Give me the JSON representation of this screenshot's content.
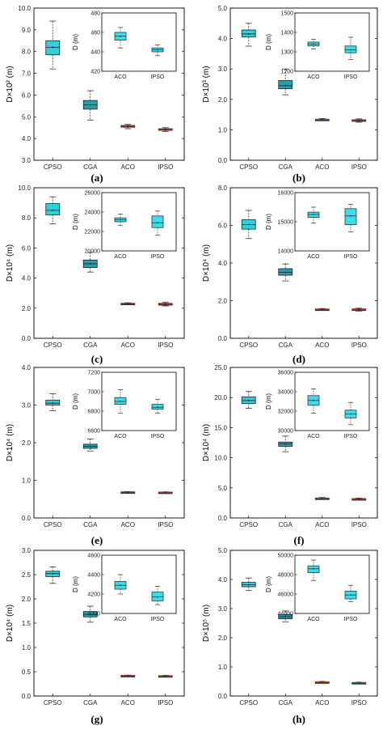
{
  "colors": {
    "CPSO": "#31cfd6",
    "CGA": "#2a9da8",
    "ACO": "#1e4f56",
    "IPSO": "#1e4f56",
    "median": "#b0341a",
    "inset_box": "#40dbe8"
  },
  "chart_data": [
    {
      "type": "box",
      "panel": "(a)",
      "ylabel": "D×10² (m)",
      "ylim": [
        3.0,
        10.0
      ],
      "yticks": [
        "3.0",
        "4.0",
        "5.0",
        "6.0",
        "7.0",
        "8.0",
        "9.0",
        "10.0"
      ],
      "categories": [
        "CPSO",
        "CGA",
        "ACO",
        "IPSO"
      ],
      "boxes": [
        {
          "min": 7.2,
          "q1": 7.85,
          "median": 8.2,
          "q3": 8.5,
          "max": 9.4
        },
        {
          "min": 4.85,
          "q1": 5.35,
          "median": 5.55,
          "q3": 5.75,
          "max": 6.2
        },
        {
          "min": 4.45,
          "q1": 4.52,
          "median": 4.56,
          "q3": 4.6,
          "max": 4.65
        },
        {
          "min": 4.32,
          "q1": 4.38,
          "median": 4.41,
          "q3": 4.45,
          "max": 4.5
        }
      ],
      "inset": {
        "ylabel": "D (m)",
        "ylim": [
          420,
          480
        ],
        "yticks": [
          "420",
          "440",
          "460",
          "480"
        ],
        "categories": [
          "ACO",
          "IPSO"
        ],
        "boxes": [
          {
            "min": 444,
            "q1": 452,
            "median": 456,
            "q3": 460,
            "max": 465
          },
          {
            "min": 436,
            "q1": 440,
            "median": 442,
            "q3": 444,
            "max": 447
          }
        ]
      }
    },
    {
      "type": "box",
      "panel": "(b)",
      "ylabel": "D×10³ (m)",
      "ylim": [
        0.0,
        5.0
      ],
      "yticks": [
        "0.0",
        "1.0",
        "2.0",
        "3.0",
        "4.0",
        "5.0"
      ],
      "categories": [
        "CPSO",
        "CGA",
        "ACO",
        "IPSO"
      ],
      "boxes": [
        {
          "min": 3.75,
          "q1": 4.05,
          "median": 4.15,
          "q3": 4.28,
          "max": 4.5
        },
        {
          "min": 2.15,
          "q1": 2.35,
          "median": 2.45,
          "q3": 2.62,
          "max": 3.0
        },
        {
          "min": 1.3,
          "q1": 1.32,
          "median": 1.34,
          "q3": 1.35,
          "max": 1.37
        },
        {
          "min": 1.25,
          "q1": 1.28,
          "median": 1.3,
          "q3": 1.33,
          "max": 1.36
        }
      ],
      "inset": {
        "ylabel": "D (m)",
        "ylim": [
          1200,
          1500
        ],
        "yticks": [
          "1200",
          "1300",
          "1400",
          "1500"
        ],
        "categories": [
          "ACO",
          "IPSO"
        ],
        "boxes": [
          {
            "min": 1315,
            "q1": 1330,
            "median": 1340,
            "q3": 1350,
            "max": 1365
          },
          {
            "min": 1260,
            "q1": 1295,
            "median": 1310,
            "q3": 1330,
            "max": 1375
          }
        ]
      }
    },
    {
      "type": "box",
      "panel": "(c)",
      "ylabel": "D×10⁴ (m)",
      "ylim": [
        0.0,
        10.0
      ],
      "yticks": [
        "0.0",
        "2.0",
        "4.0",
        "6.0",
        "8.0",
        "10.0"
      ],
      "categories": [
        "CPSO",
        "CGA",
        "ACO",
        "IPSO"
      ],
      "boxes": [
        {
          "min": 7.6,
          "q1": 8.2,
          "median": 8.5,
          "q3": 8.95,
          "max": 9.4
        },
        {
          "min": 4.4,
          "q1": 4.7,
          "median": 4.95,
          "q3": 5.2,
          "max": 5.7
        },
        {
          "min": 2.25,
          "q1": 2.28,
          "median": 2.3,
          "q3": 2.33,
          "max": 2.36
        },
        {
          "min": 2.15,
          "q1": 2.2,
          "median": 2.25,
          "q3": 2.32,
          "max": 2.4
        }
      ],
      "inset": {
        "ylabel": "D (m)",
        "ylim": [
          20000,
          26000
        ],
        "yticks": [
          "20000",
          "22000",
          "24000",
          "26000"
        ],
        "categories": [
          "ACO",
          "IPSO"
        ],
        "boxes": [
          {
            "min": 22600,
            "q1": 23000,
            "median": 23200,
            "q3": 23400,
            "max": 23800
          },
          {
            "min": 21600,
            "q1": 22400,
            "median": 22900,
            "q3": 23600,
            "max": 24100
          }
        ]
      }
    },
    {
      "type": "box",
      "panel": "(d)",
      "ylabel": "D×10⁴ (m)",
      "ylim": [
        0.0,
        8.0
      ],
      "yticks": [
        "0.0",
        "2.0",
        "4.0",
        "6.0",
        "8.0"
      ],
      "categories": [
        "CPSO",
        "CGA",
        "ACO",
        "IPSO"
      ],
      "boxes": [
        {
          "min": 5.3,
          "q1": 5.8,
          "median": 6.05,
          "q3": 6.3,
          "max": 6.8
        },
        {
          "min": 3.05,
          "q1": 3.35,
          "median": 3.5,
          "q3": 3.7,
          "max": 3.95
        },
        {
          "min": 1.5,
          "q1": 1.52,
          "median": 1.54,
          "q3": 1.56,
          "max": 1.58
        },
        {
          "min": 1.45,
          "q1": 1.48,
          "median": 1.52,
          "q3": 1.56,
          "max": 1.6
        }
      ],
      "inset": {
        "ylabel": "D (m)",
        "ylim": [
          14000,
          16000
        ],
        "yticks": [
          "14000",
          "15000",
          "16000"
        ],
        "categories": [
          "ACO",
          "IPSO"
        ],
        "boxes": [
          {
            "min": 14950,
            "q1": 15150,
            "median": 15250,
            "q3": 15330,
            "max": 15500
          },
          {
            "min": 14650,
            "q1": 14900,
            "median": 15200,
            "q3": 15450,
            "max": 15600
          }
        ]
      }
    },
    {
      "type": "box",
      "panel": "(e)",
      "ylabel": "D×10⁴ (m)",
      "ylim": [
        0.0,
        4.0
      ],
      "yticks": [
        "0.0",
        "1.0",
        "2.0",
        "3.0",
        "4.0"
      ],
      "categories": [
        "CPSO",
        "CGA",
        "ACO",
        "IPSO"
      ],
      "boxes": [
        {
          "min": 2.85,
          "q1": 3.0,
          "median": 3.05,
          "q3": 3.13,
          "max": 3.3
        },
        {
          "min": 1.78,
          "q1": 1.85,
          "median": 1.9,
          "q3": 1.96,
          "max": 2.1
        },
        {
          "min": 0.68,
          "q1": 0.685,
          "median": 0.69,
          "q3": 0.695,
          "max": 0.7
        },
        {
          "min": 0.675,
          "q1": 0.68,
          "median": 0.685,
          "q3": 0.69,
          "max": 0.695
        }
      ],
      "inset": {
        "ylabel": "D (m)",
        "ylim": [
          6600,
          7200
        ],
        "yticks": [
          "6600",
          "6800",
          "7000",
          "7200"
        ],
        "categories": [
          "ACO",
          "IPSO"
        ],
        "boxes": [
          {
            "min": 6780,
            "q1": 6870,
            "median": 6900,
            "q3": 6940,
            "max": 7020
          },
          {
            "min": 6780,
            "q1": 6820,
            "median": 6840,
            "q3": 6870,
            "max": 6920
          }
        ]
      }
    },
    {
      "type": "box",
      "panel": "(f)",
      "ylabel": "D×10⁴ (m)",
      "ylim": [
        0.0,
        25.0
      ],
      "yticks": [
        "0.0",
        "5.0",
        "10.0",
        "15.0",
        "20.0",
        "25.0"
      ],
      "categories": [
        "CPSO",
        "CGA",
        "ACO",
        "IPSO"
      ],
      "boxes": [
        {
          "min": 18.2,
          "q1": 19.0,
          "median": 19.5,
          "q3": 20.1,
          "max": 21.0
        },
        {
          "min": 11.0,
          "q1": 11.9,
          "median": 12.3,
          "q3": 12.6,
          "max": 13.6
        },
        {
          "min": 3.15,
          "q1": 3.22,
          "median": 3.28,
          "q3": 3.32,
          "max": 3.4
        },
        {
          "min": 3.0,
          "q1": 3.08,
          "median": 3.15,
          "q3": 3.22,
          "max": 3.3
        }
      ],
      "inset": {
        "ylabel": "D (m)",
        "ylim": [
          30000,
          36000
        ],
        "yticks": [
          "30000",
          "32000",
          "34000",
          "36000"
        ],
        "categories": [
          "ACO",
          "IPSO"
        ],
        "boxes": [
          {
            "min": 31800,
            "q1": 32600,
            "median": 33100,
            "q3": 33600,
            "max": 34300
          },
          {
            "min": 30600,
            "q1": 31300,
            "median": 31700,
            "q3": 32100,
            "max": 32900
          }
        ]
      }
    },
    {
      "type": "box",
      "panel": "(g)",
      "ylabel": "D×10⁴ (m)",
      "ylim": [
        0.0,
        3.0
      ],
      "yticks": [
        "0.0",
        "0.5",
        "1.0",
        "1.5",
        "2.0",
        "2.5",
        "3.0"
      ],
      "categories": [
        "CPSO",
        "CGA",
        "ACO",
        "IPSO"
      ],
      "boxes": [
        {
          "min": 2.32,
          "q1": 2.46,
          "median": 2.52,
          "q3": 2.57,
          "max": 2.66
        },
        {
          "min": 1.52,
          "q1": 1.63,
          "median": 1.68,
          "q3": 1.74,
          "max": 1.85
        },
        {
          "min": 0.41,
          "q1": 0.418,
          "median": 0.422,
          "q3": 0.426,
          "max": 0.43
        },
        {
          "min": 0.405,
          "q1": 0.41,
          "median": 0.415,
          "q3": 0.42,
          "max": 0.425
        }
      ],
      "inset": {
        "ylabel": "D (m)",
        "ylim": [
          4000,
          4600
        ],
        "yticks": [
          "4000",
          "4200",
          "4400",
          "4600"
        ],
        "categories": [
          "ACO",
          "IPSO"
        ],
        "boxes": [
          {
            "min": 4200,
            "q1": 4250,
            "median": 4290,
            "q3": 4330,
            "max": 4400
          },
          {
            "min": 4090,
            "q1": 4130,
            "median": 4170,
            "q3": 4220,
            "max": 4280
          }
        ]
      }
    },
    {
      "type": "box",
      "panel": "(h)",
      "ylabel": "D×10⁵ (m)",
      "ylim": [
        0.0,
        5.0
      ],
      "yticks": [
        "0.0",
        "1.0",
        "2.0",
        "3.0",
        "4.0",
        "5.0"
      ],
      "categories": [
        "CPSO",
        "CGA",
        "ACO",
        "IPSO"
      ],
      "boxes": [
        {
          "min": 3.62,
          "q1": 3.75,
          "median": 3.82,
          "q3": 3.9,
          "max": 4.05
        },
        {
          "min": 2.55,
          "q1": 2.65,
          "median": 2.72,
          "q3": 2.8,
          "max": 2.92
        },
        {
          "min": 0.47,
          "q1": 0.48,
          "median": 0.485,
          "q3": 0.49,
          "max": 0.5
        },
        {
          "min": 0.445,
          "q1": 0.455,
          "median": 0.46,
          "q3": 0.465,
          "max": 0.475
        }
      ],
      "inset": {
        "ylabel": "D (m)",
        "ylim": [
          44000,
          50000
        ],
        "yticks": [
          "44000",
          "46000",
          "48000",
          "50000"
        ],
        "categories": [
          "ACO",
          "IPSO"
        ],
        "boxes": [
          {
            "min": 47400,
            "q1": 48200,
            "median": 48600,
            "q3": 48900,
            "max": 49500
          },
          {
            "min": 45200,
            "q1": 45500,
            "median": 45900,
            "q3": 46300,
            "max": 46900
          }
        ]
      }
    }
  ]
}
